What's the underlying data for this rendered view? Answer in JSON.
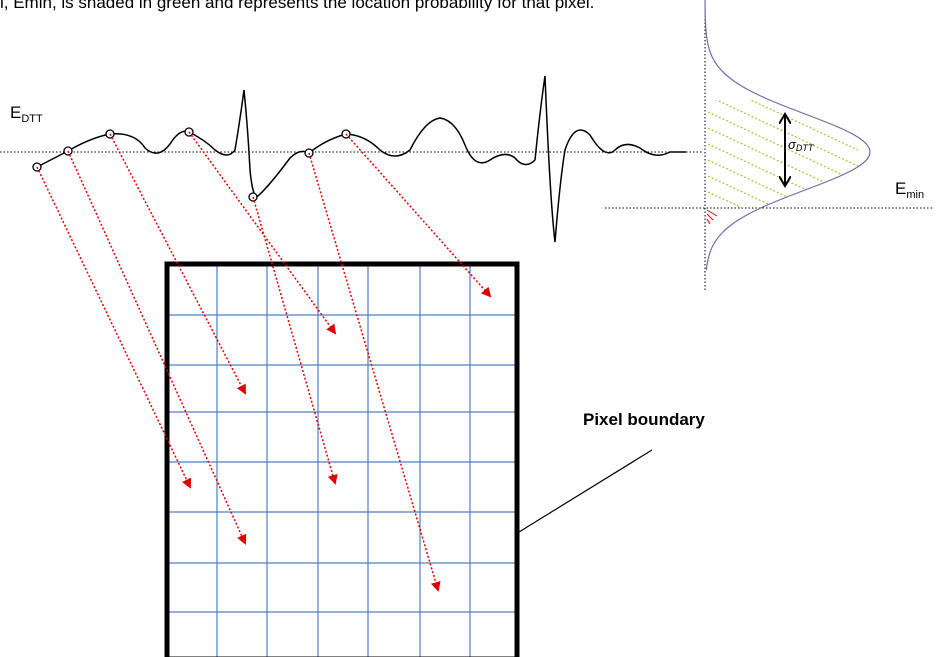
{
  "caption": "l, Emin, is shaded in green and represents the location probability for that pixel.",
  "labels": {
    "edtt": {
      "main": "E",
      "sub": "DTT"
    },
    "sigma": {
      "main": "σ",
      "sub": "DTT"
    },
    "emin": {
      "main": "E",
      "sub": "min"
    },
    "pixel_boundary": "Pixel boundary"
  }
}
